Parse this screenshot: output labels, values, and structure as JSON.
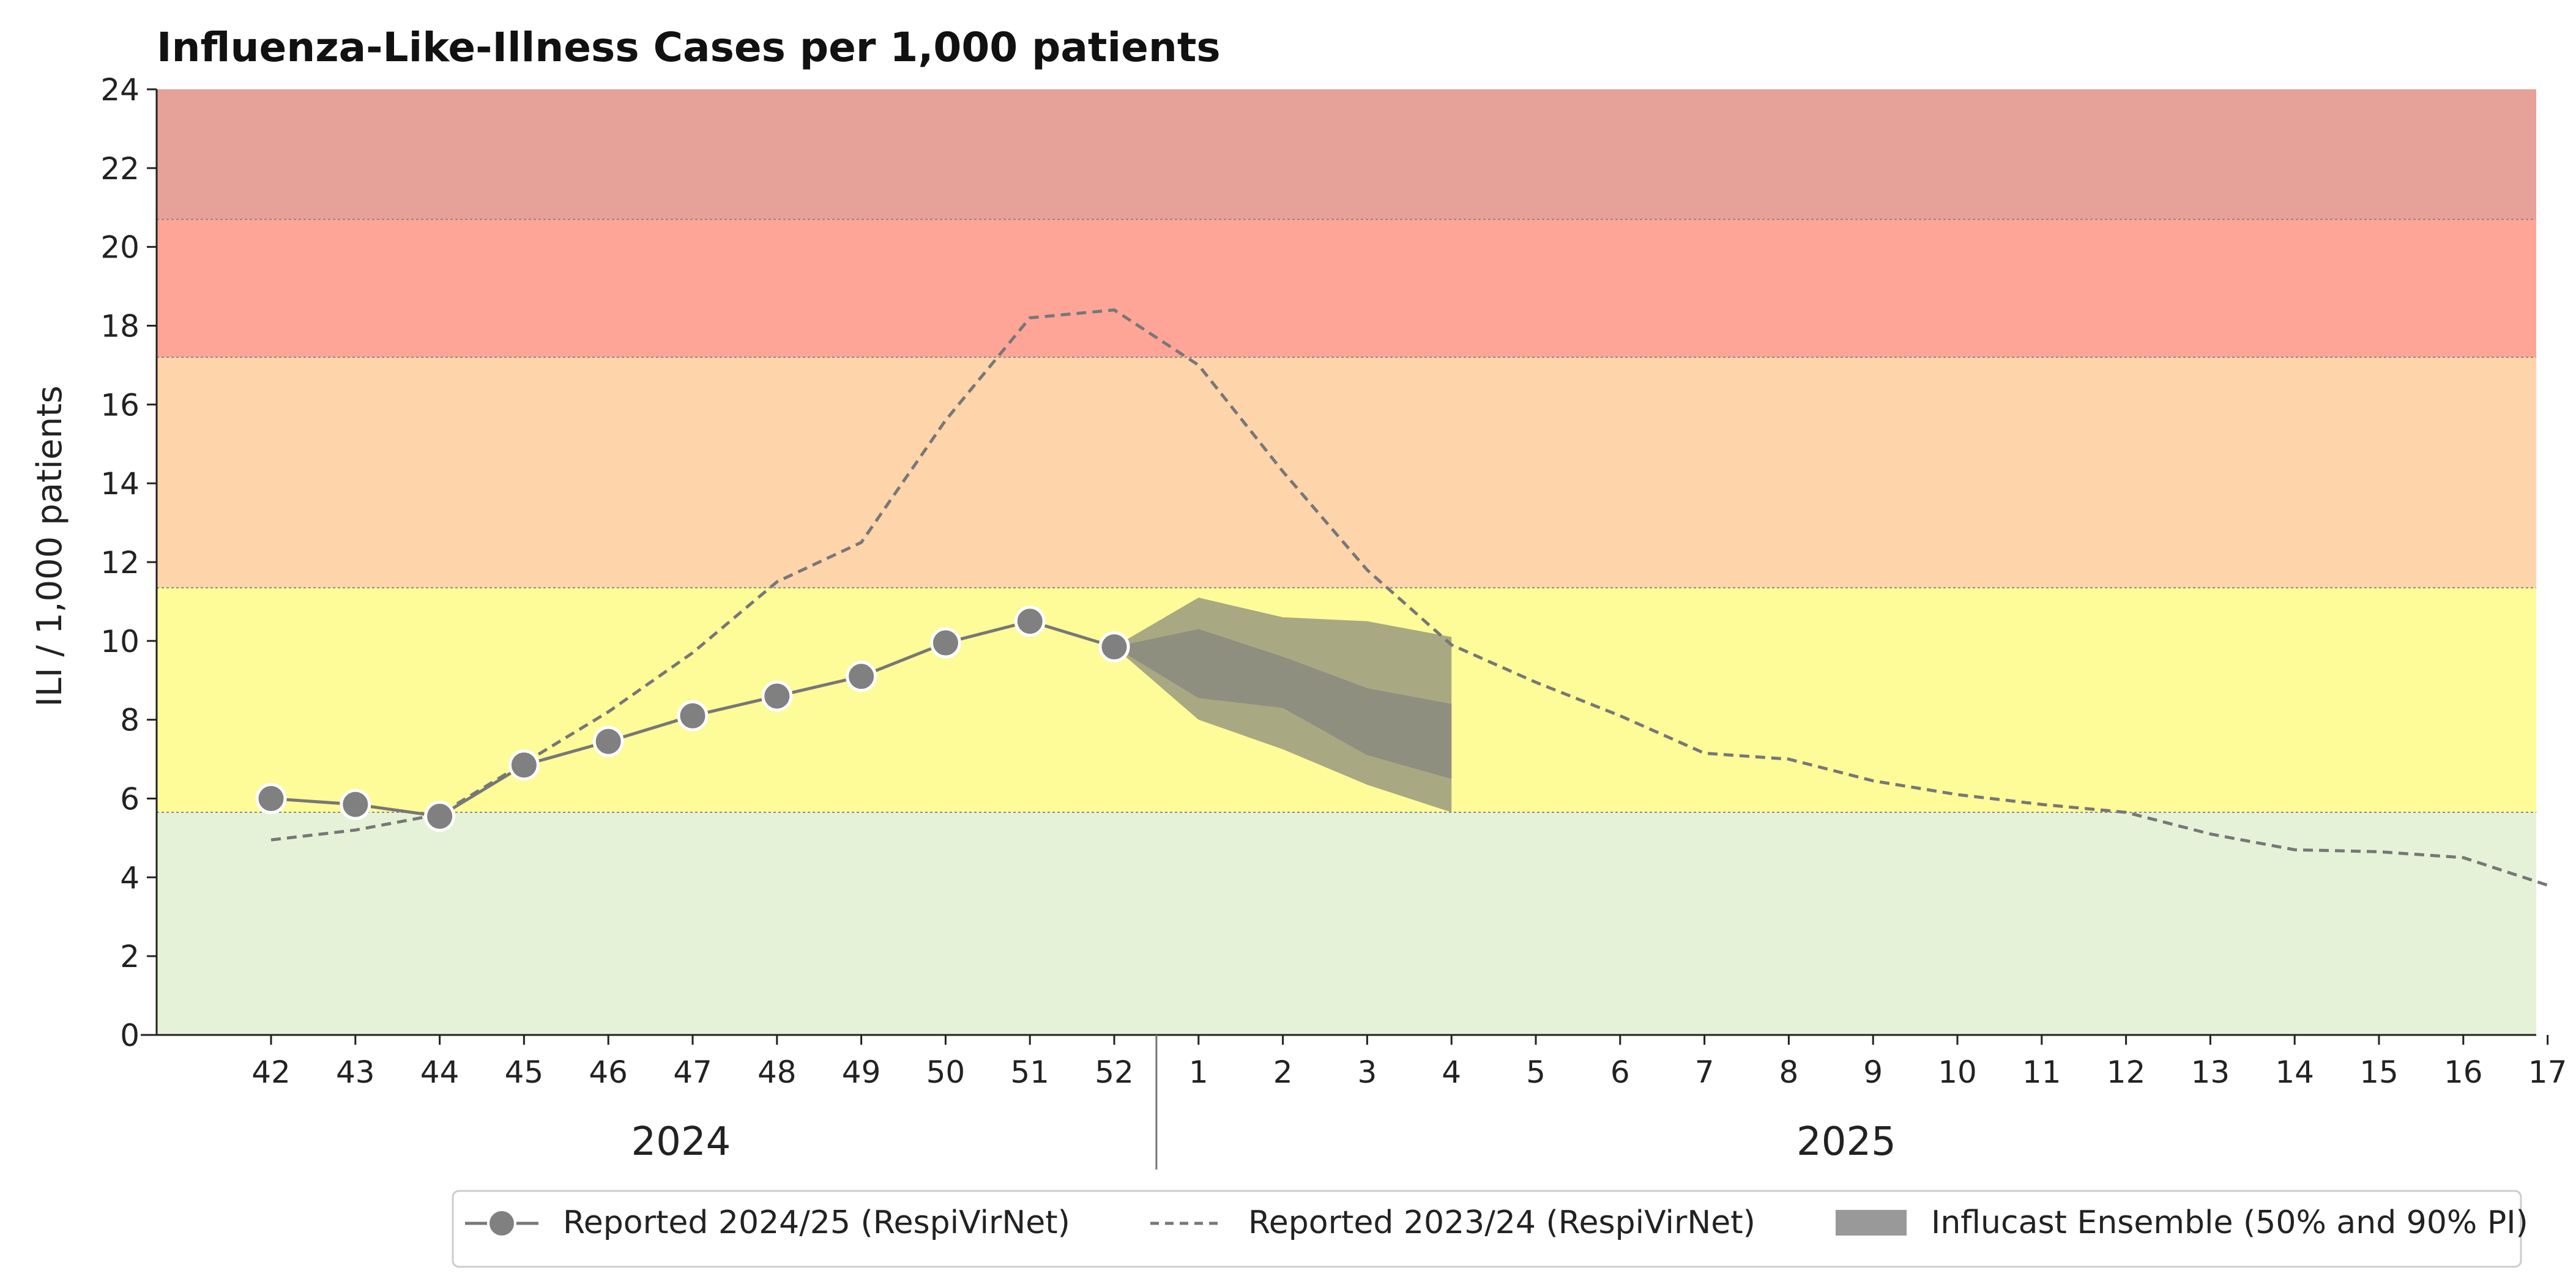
{
  "chart_data": {
    "type": "line",
    "title": "Influenza-Like-Illness Cases per 1,000 patients",
    "ylabel": "ILI / 1,000 patients",
    "xlabel": "",
    "ylim": [
      0,
      24
    ],
    "yticks": [
      0,
      2,
      4,
      6,
      8,
      10,
      12,
      14,
      16,
      18,
      20,
      22,
      24
    ],
    "categories": [
      "42",
      "43",
      "44",
      "45",
      "46",
      "47",
      "48",
      "49",
      "50",
      "51",
      "52",
      "1",
      "2",
      "3",
      "4",
      "5",
      "6",
      "7",
      "8",
      "9",
      "10",
      "11",
      "12",
      "13",
      "14",
      "15",
      "16",
      "17"
    ],
    "year_groups": [
      {
        "label": "2024",
        "weeks": [
          "42",
          "43",
          "44",
          "45",
          "46",
          "47",
          "48",
          "49",
          "50",
          "51",
          "52"
        ]
      },
      {
        "label": "2025",
        "weeks": [
          "1",
          "2",
          "3",
          "4",
          "5",
          "6",
          "7",
          "8",
          "9",
          "10",
          "11",
          "12",
          "13",
          "14",
          "15",
          "16",
          "17"
        ]
      }
    ],
    "intensity_bands": [
      {
        "from": 0,
        "to": 5.65,
        "color": "#e6f2d8"
      },
      {
        "from": 5.65,
        "to": 11.35,
        "color": "#fefb99"
      },
      {
        "from": 11.35,
        "to": 17.2,
        "color": "#fed4aa"
      },
      {
        "from": 17.2,
        "to": 20.7,
        "color": "#ffa598"
      },
      {
        "from": 20.7,
        "to": 24,
        "color": "#e6a198"
      }
    ],
    "series": [
      {
        "name": "Reported 2024/25 (RespiVirNet)",
        "style": "solid-markers",
        "color": "#777777",
        "x": [
          "42",
          "43",
          "44",
          "45",
          "46",
          "47",
          "48",
          "49",
          "50",
          "51",
          "52"
        ],
        "values": [
          6.0,
          5.85,
          5.55,
          6.85,
          7.45,
          8.1,
          8.6,
          9.1,
          9.95,
          10.5,
          9.85
        ]
      },
      {
        "name": "Reported 2023/24 (RespiVirNet)",
        "style": "dashed",
        "color": "#777777",
        "x": [
          "42",
          "43",
          "44",
          "45",
          "46",
          "47",
          "48",
          "49",
          "50",
          "51",
          "52",
          "1",
          "2",
          "3",
          "4",
          "5",
          "6",
          "7",
          "8",
          "9",
          "10",
          "11",
          "12",
          "13",
          "14",
          "15",
          "16",
          "17"
        ],
        "values": [
          4.95,
          5.2,
          5.6,
          6.9,
          8.2,
          9.7,
          11.5,
          12.5,
          15.6,
          18.2,
          18.4,
          17.0,
          14.3,
          11.8,
          9.9,
          8.95,
          8.1,
          7.15,
          7.0,
          6.45,
          6.1,
          5.85,
          5.65,
          5.1,
          4.7,
          4.65,
          4.5,
          3.8
        ]
      }
    ],
    "forecast": {
      "name": "Influcast Ensemble (50% and 90% PI)",
      "x": [
        "52",
        "1",
        "2",
        "3",
        "4"
      ],
      "pi90_lower": [
        9.85,
        8.0,
        7.25,
        6.35,
        5.65
      ],
      "pi90_upper": [
        9.85,
        11.1,
        10.6,
        10.5,
        10.1
      ],
      "pi50_lower": [
        9.85,
        8.55,
        8.3,
        7.1,
        6.5
      ],
      "pi50_upper": [
        9.85,
        10.3,
        9.6,
        8.8,
        8.4
      ],
      "pi90_color": "#a8a882",
      "pi50_color": "#8f8f80"
    },
    "legend_position": "bottom-right",
    "grid": false
  }
}
